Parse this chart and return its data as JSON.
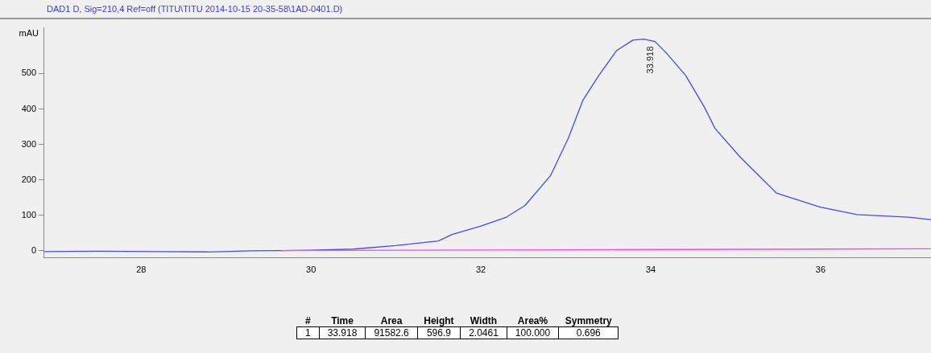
{
  "chart_data": {
    "type": "line",
    "title": "DAD1 D, Sig=210,4 Ref=off (TITU\\TITU 2014-10-15 20-35-58\\1AD-0401.D)",
    "ylabel": "mAU",
    "xlim": [
      26.85,
      37.3
    ],
    "xticks": [
      28,
      30,
      32,
      34,
      36
    ],
    "ylim": [
      -20,
      630
    ],
    "yticks": [
      0,
      100,
      200,
      300,
      400,
      500
    ],
    "grid": false,
    "legend": false,
    "marker": "none",
    "line_style": "solid",
    "series": [
      {
        "color": "#4646ff",
        "x": [
          26.86,
          27.5,
          28.2,
          28.8,
          29.3,
          29.65,
          30.0,
          30.5,
          31.0,
          31.5,
          31.66,
          32.0,
          32.3,
          32.52,
          32.82,
          33.03,
          33.2,
          33.39,
          33.6,
          33.79,
          33.918,
          34.05,
          34.19,
          34.41,
          34.63,
          34.76,
          35.05,
          35.48,
          36.0,
          36.43,
          37.04,
          37.3
        ],
        "values": [
          -2,
          -1,
          -2,
          -3,
          0,
          1,
          2,
          5,
          15,
          28,
          46,
          70,
          95,
          128,
          212,
          318,
          424,
          495,
          565,
          594,
          597,
          590,
          556,
          495,
          406,
          344,
          265,
          163,
          123,
          102,
          95,
          88
        ]
      },
      {
        "color": "#ff40ff",
        "x": [
          29.65,
          33.0,
          37.3
        ],
        "values": [
          1,
          3,
          6
        ]
      }
    ],
    "annotations": [
      {
        "text": "33.918",
        "x": 33.918,
        "y": 597
      },
      "#\tTime\tArea\tHeight\tWidth\tArea%\tSymmetry",
      "1\t33.918\t91582.6\t596.9\t2.0461\t100.000\t0.696"
    ]
  }
}
